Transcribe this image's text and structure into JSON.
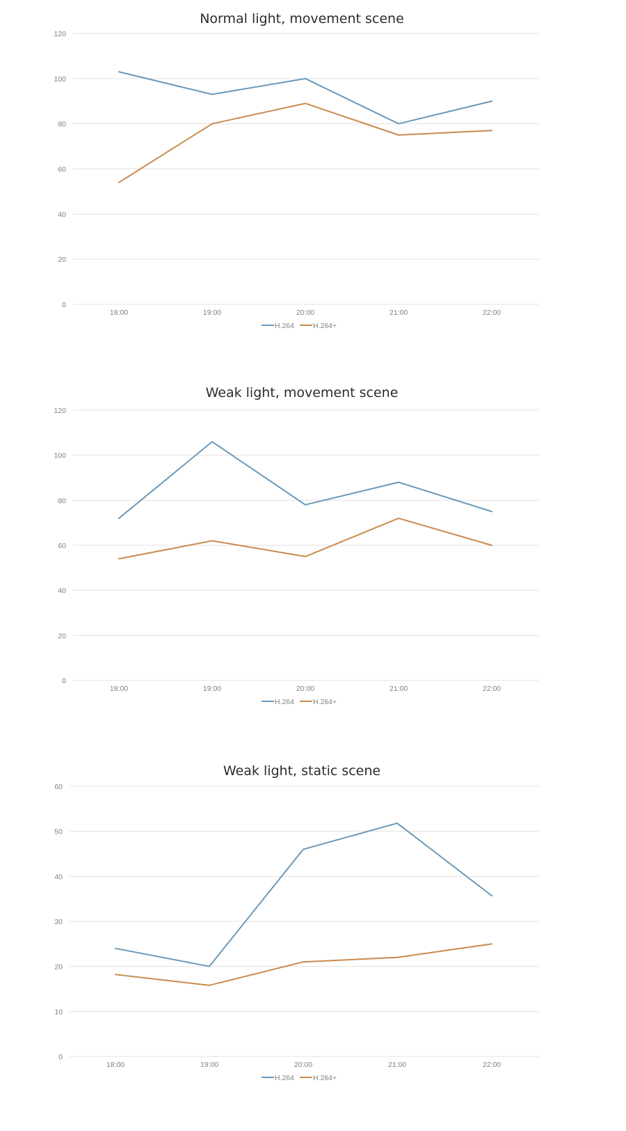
{
  "chart_data": [
    {
      "type": "line",
      "title": "Normal  light, movement  scene",
      "categories": [
        "18:00",
        "19:00",
        "20:00",
        "21:00",
        "22:00"
      ],
      "ylim": [
        0,
        120
      ],
      "yticks": [
        0,
        20,
        40,
        60,
        80,
        100,
        120
      ],
      "grid": true,
      "legend_position": "bottom",
      "series": [
        {
          "name": "H.264",
          "color": "#6b98b8",
          "values": [
            103,
            93,
            100,
            80,
            90
          ]
        },
        {
          "name": "H.264+",
          "color": "#c98a4c",
          "values": [
            54,
            80,
            89,
            75,
            77
          ]
        }
      ]
    },
    {
      "type": "line",
      "title": "Weak  light, movement  scene",
      "categories": [
        "18:00",
        "19:00",
        "20:00",
        "21:00",
        "22:00"
      ],
      "ylim": [
        0,
        120
      ],
      "yticks": [
        0,
        20,
        40,
        60,
        80,
        100,
        120
      ],
      "grid": true,
      "legend_position": "bottom",
      "series": [
        {
          "name": "H.264",
          "color": "#6b98b8",
          "values": [
            72,
            106,
            78,
            88,
            75
          ]
        },
        {
          "name": "H.264+",
          "color": "#c98a4c",
          "values": [
            54,
            62,
            55,
            72,
            60
          ]
        }
      ]
    },
    {
      "type": "line",
      "title": "Weak  light, static  scene",
      "categories": [
        "18:00",
        "19:00",
        "20:00",
        "21:00",
        "22:00"
      ],
      "ylim": [
        0,
        60
      ],
      "yticks": [
        0,
        10,
        20,
        30,
        40,
        50,
        60
      ],
      "grid": true,
      "legend_position": "bottom",
      "series": [
        {
          "name": "H.264",
          "color": "#6b98b8",
          "values": [
            24,
            20,
            46,
            51.8,
            35.7
          ]
        },
        {
          "name": "H.264+",
          "color": "#c98a4c",
          "values": [
            18.2,
            15.8,
            21,
            22,
            25
          ]
        }
      ]
    }
  ]
}
